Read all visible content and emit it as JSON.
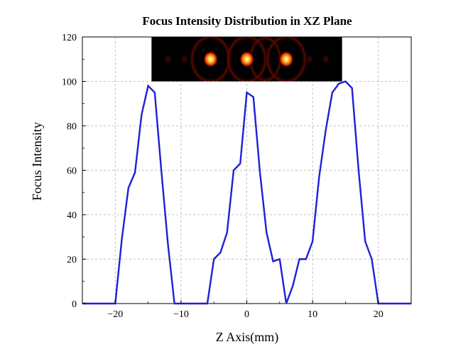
{
  "chart_data": {
    "type": "line",
    "title": "Focus Intensity Distribution in XZ Plane",
    "xlabel": "Z Axis(mm)",
    "ylabel": "Focus Intensity",
    "xlim": [
      -25,
      25
    ],
    "ylim": [
      0,
      120
    ],
    "xticks": [
      -20,
      -10,
      0,
      10,
      20
    ],
    "xtick_labels": [
      "−20",
      "−10",
      "0",
      "10",
      "20"
    ],
    "yticks": [
      0,
      20,
      40,
      60,
      80,
      100,
      120
    ],
    "grid": true,
    "grid_style": "dashed",
    "series": [
      {
        "color": "#1f1fd6",
        "x": [
          -25,
          -20,
          -19,
          -18,
          -17,
          -16,
          -15,
          -14,
          -13,
          -12,
          -11,
          -6,
          -5,
          -4,
          -3,
          -2,
          -1,
          0,
          1,
          2,
          3,
          4,
          5,
          6,
          7,
          8,
          9,
          10,
          11,
          12,
          13,
          14,
          15,
          16,
          17,
          18,
          19,
          20,
          25
        ],
        "y": [
          0,
          0,
          29,
          52,
          59,
          85,
          98,
          95,
          60,
          27,
          0,
          0,
          20,
          23,
          32,
          60,
          63,
          95,
          93,
          59,
          32,
          19,
          20,
          0,
          8,
          20,
          20,
          28,
          57,
          78,
          95,
          99,
          100,
          97,
          60,
          28,
          20,
          0,
          0
        ]
      }
    ],
    "inset_image": {
      "description_colormap": "hot",
      "extent_x": [
        -14.5,
        14.5
      ],
      "extent_y": [
        100,
        120
      ],
      "focal_spots_x": [
        -5.5,
        0,
        6
      ]
    }
  }
}
